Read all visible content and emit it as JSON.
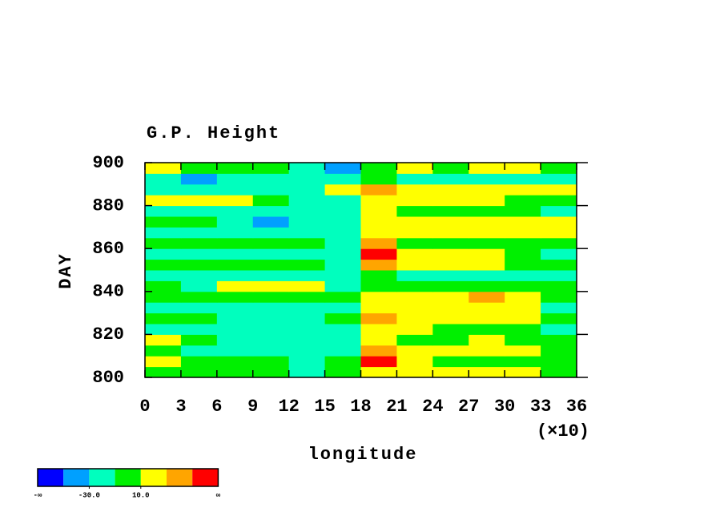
{
  "chart_data": {
    "type": "heatmap",
    "title": "G.P. Height",
    "xlabel": "longitude",
    "ylabel": "DAY",
    "x_multiplier": "(×10)",
    "xbins": [
      0,
      3,
      6,
      9,
      12,
      15,
      18,
      21,
      24,
      27,
      30,
      33,
      36
    ],
    "ybins": [
      800,
      805,
      810,
      815,
      820,
      825,
      830,
      835,
      840,
      845,
      850,
      855,
      860,
      865,
      870,
      875,
      880,
      885,
      890,
      895,
      900
    ],
    "values": [
      [
        0,
        0,
        0,
        -5,
        -15,
        0,
        25,
        20,
        15,
        20,
        20,
        0
      ],
      [
        20,
        0,
        -5,
        -5,
        -15,
        -10,
        55,
        20,
        0,
        0,
        5,
        5
      ],
      [
        0,
        -15,
        -15,
        -20,
        -20,
        -20,
        35,
        20,
        20,
        25,
        20,
        0
      ],
      [
        25,
        0,
        -15,
        -20,
        -20,
        -20,
        20,
        0,
        0,
        15,
        0,
        -5
      ],
      [
        -15,
        -15,
        -20,
        -25,
        -20,
        -15,
        20,
        15,
        0,
        0,
        0,
        -15
      ],
      [
        0,
        0,
        -20,
        -20,
        -20,
        -5,
        35,
        20,
        20,
        20,
        20,
        0
      ],
      [
        -15,
        -15,
        -15,
        -20,
        -20,
        -15,
        20,
        25,
        25,
        25,
        25,
        -15
      ],
      [
        0,
        0,
        0,
        -5,
        0,
        -5,
        15,
        25,
        25,
        30,
        20,
        0
      ],
      [
        0,
        -15,
        20,
        20,
        20,
        -20,
        0,
        0,
        0,
        -5,
        0,
        0
      ],
      [
        -15,
        -15,
        -15,
        -20,
        -15,
        -15,
        0,
        -15,
        -15,
        -15,
        -15,
        -15
      ],
      [
        0,
        0,
        0,
        0,
        0,
        -15,
        40,
        20,
        20,
        15,
        0,
        0
      ],
      [
        -15,
        -15,
        -15,
        -15,
        -15,
        -15,
        55,
        20,
        20,
        15,
        0,
        -15
      ],
      [
        0,
        0,
        0,
        0,
        0,
        -15,
        40,
        0,
        0,
        0,
        0,
        0
      ],
      [
        -15,
        -15,
        -20,
        -20,
        -15,
        -15,
        25,
        20,
        15,
        15,
        20,
        15
      ],
      [
        0,
        0,
        -15,
        -35,
        -20,
        -15,
        20,
        25,
        25,
        20,
        20,
        15
      ],
      [
        -15,
        -15,
        -15,
        -15,
        -20,
        -25,
        15,
        0,
        0,
        0,
        0,
        -15
      ],
      [
        20,
        20,
        20,
        -5,
        -20,
        -15,
        20,
        15,
        15,
        15,
        0,
        0
      ],
      [
        -15,
        -25,
        -20,
        -20,
        -15,
        20,
        40,
        15,
        15,
        15,
        20,
        15
      ],
      [
        -20,
        -35,
        -20,
        -20,
        -20,
        -15,
        0,
        -15,
        -15,
        -15,
        -15,
        -15
      ],
      [
        20,
        0,
        0,
        0,
        -15,
        -35,
        0,
        15,
        0,
        20,
        20,
        0
      ]
    ],
    "levels": [
      -50,
      -30,
      -10,
      10,
      30,
      50
    ],
    "colors": [
      "#0000ff",
      "#00a0ff",
      "#00ffbe",
      "#00f000",
      "#ffff00",
      "#ffa500",
      "#ff0000"
    ],
    "colorbar_end_labels": [
      "-∞",
      "∞"
    ],
    "colorbar_ticks": [
      {
        "value": -30,
        "label": "-30.0"
      },
      {
        "value": 10,
        "label": "10.0"
      }
    ],
    "xlim": [
      0,
      36
    ],
    "ylim": [
      800,
      900
    ],
    "xticks": [
      0,
      3,
      6,
      9,
      12,
      15,
      18,
      21,
      24,
      27,
      30,
      33,
      36
    ],
    "yticks": [
      800,
      820,
      840,
      860,
      880,
      900
    ]
  }
}
